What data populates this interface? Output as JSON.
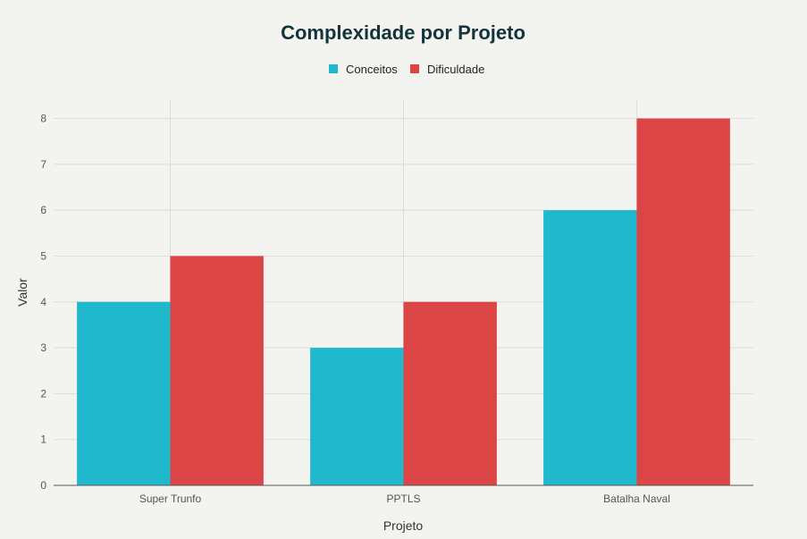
{
  "chart_data": {
    "type": "bar",
    "title": "Complexidade por Projeto",
    "xlabel": "Projeto",
    "ylabel": "Valor",
    "categories": [
      "Super Trunfo",
      "PPTLS",
      "Batalha Naval"
    ],
    "series": [
      {
        "name": "Conceitos",
        "color": "#1fb8cd",
        "values": [
          4,
          3,
          6
        ]
      },
      {
        "name": "Dificuldade",
        "color": "#db4545",
        "values": [
          5,
          4,
          8
        ]
      }
    ],
    "ylim": [
      0,
      8.4
    ],
    "yticks": [
      0,
      1,
      2,
      3,
      4,
      5,
      6,
      7,
      8
    ],
    "legend_position": "top-center",
    "grid": true
  }
}
